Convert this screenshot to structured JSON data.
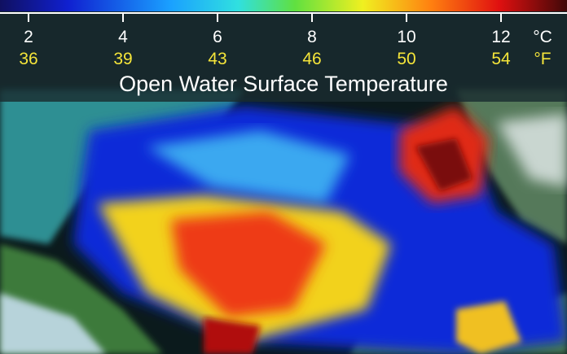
{
  "title": "Open Water Surface Temperature",
  "colorbar": {
    "celsius_unit": "°C",
    "fahrenheit_unit": "°F",
    "ticks": [
      {
        "celsius": 2,
        "fahrenheit": 36
      },
      {
        "celsius": 4,
        "fahrenheit": 39
      },
      {
        "celsius": 6,
        "fahrenheit": 43
      },
      {
        "celsius": 8,
        "fahrenheit": 46
      },
      {
        "celsius": 10,
        "fahrenheit": 50
      },
      {
        "celsius": 12,
        "fahrenheit": 54
      }
    ]
  }
}
